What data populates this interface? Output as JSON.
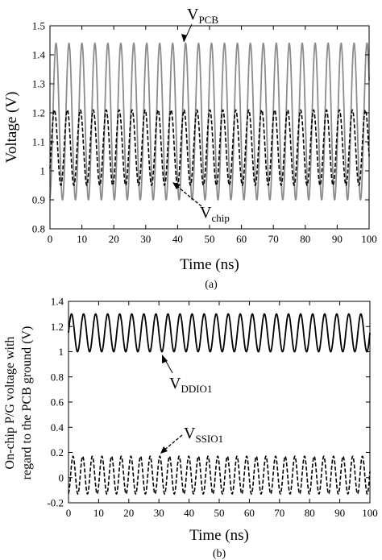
{
  "chart_data": [
    {
      "type": "line",
      "caption": "(a)",
      "xlabel": "Time (ns)",
      "ylabel": "Voltage (V)",
      "xlim": [
        0,
        100
      ],
      "ylim": [
        0.8,
        1.5
      ],
      "xticks": [
        0,
        10,
        20,
        30,
        40,
        50,
        60,
        70,
        80,
        90,
        100
      ],
      "yticks": [
        "0.8",
        "0.9",
        "1",
        "1.1",
        "1.2",
        "1.3",
        "1.4",
        "1.5"
      ],
      "grid": false,
      "series": [
        {
          "name": "V_PCB",
          "label_main": "V",
          "label_sub": "PCB",
          "style": "solid",
          "color": "#8c8c8c",
          "period_ns": 4.06,
          "phase_ns": 1.9,
          "max": 1.44,
          "min": 0.9
        },
        {
          "name": "V_chip",
          "label_main": "V",
          "label_sub": "chip",
          "style": "dashed",
          "color": "#000000",
          "period_ns": 4.06,
          "phase_ns": 1.4,
          "max": 1.21,
          "min": 0.95
        }
      ]
    },
    {
      "type": "line",
      "caption": "(b)",
      "xlabel": "Time (ns)",
      "ylabel_line1": "On-chip P/G voltage with",
      "ylabel_line2": "regard to the PCB ground (V)",
      "xlim": [
        0,
        100
      ],
      "ylim": [
        -0.2,
        1.4
      ],
      "xticks": [
        0,
        10,
        20,
        30,
        40,
        50,
        60,
        70,
        80,
        90,
        100
      ],
      "yticks": [
        "-0.2",
        "0",
        "0.2",
        "0.4",
        "0.6",
        "0.8",
        "1",
        "1.2",
        "1.4"
      ],
      "grid": false,
      "series": [
        {
          "name": "V_DDIO1",
          "label_main": "V",
          "label_sub": "DDIO1",
          "style": "solid",
          "color": "#000000",
          "period_ns": 4.0,
          "phase_ns": 1.0,
          "max": 1.3,
          "min": 1.0
        },
        {
          "name": "V_SSIO1",
          "label_main": "V",
          "label_sub": "SSIO1",
          "style": "dashed",
          "color": "#000000",
          "period_ns": 3.2,
          "phase_ns": 1.5,
          "max": 0.17,
          "min": -0.13
        }
      ]
    }
  ]
}
